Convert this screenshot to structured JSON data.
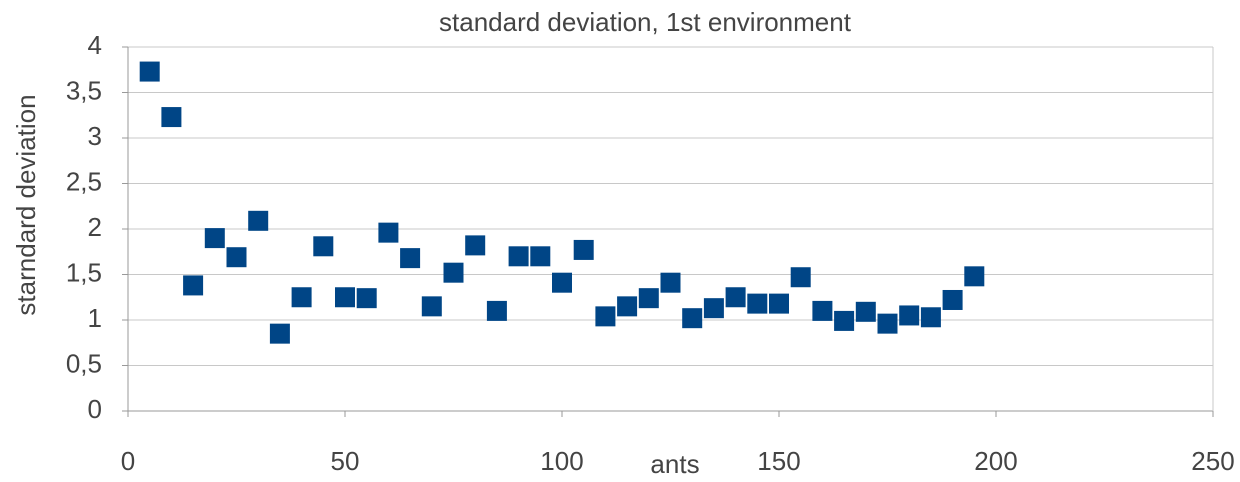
{
  "chart_data": {
    "type": "scatter",
    "title": "standard deviation, 1st environment",
    "xlabel": "ants",
    "ylabel": "starndard deviation",
    "x": [
      5,
      10,
      15,
      20,
      25,
      30,
      35,
      40,
      45,
      50,
      55,
      60,
      65,
      70,
      75,
      80,
      85,
      90,
      95,
      100,
      105,
      110,
      115,
      120,
      125,
      130,
      135,
      140,
      145,
      150,
      155,
      160,
      165,
      170,
      175,
      180,
      185,
      190,
      195
    ],
    "values": [
      3.73,
      3.23,
      1.38,
      1.9,
      1.69,
      2.09,
      0.85,
      1.25,
      1.81,
      1.25,
      1.24,
      1.96,
      1.68,
      1.15,
      1.52,
      1.82,
      1.1,
      1.7,
      1.7,
      1.41,
      1.77,
      1.04,
      1.15,
      1.24,
      1.41,
      1.02,
      1.13,
      1.25,
      1.18,
      1.18,
      1.47,
      1.1,
      0.99,
      1.09,
      0.96,
      1.05,
      1.03,
      1.22,
      1.48
    ],
    "color": "#004586",
    "xlim": [
      0,
      250
    ],
    "xticks": [
      0,
      50,
      100,
      150,
      200,
      250
    ],
    "ylim": [
      0,
      4
    ],
    "yticks": [
      0,
      {
        "value": 0.5,
        "label": "0,5"
      },
      1,
      {
        "value": 1.5,
        "label": "1,5"
      },
      2,
      {
        "value": 2.5,
        "label": "2,5"
      },
      3,
      {
        "value": 3.5,
        "label": "3,5"
      },
      4
    ],
    "grid": true
  }
}
